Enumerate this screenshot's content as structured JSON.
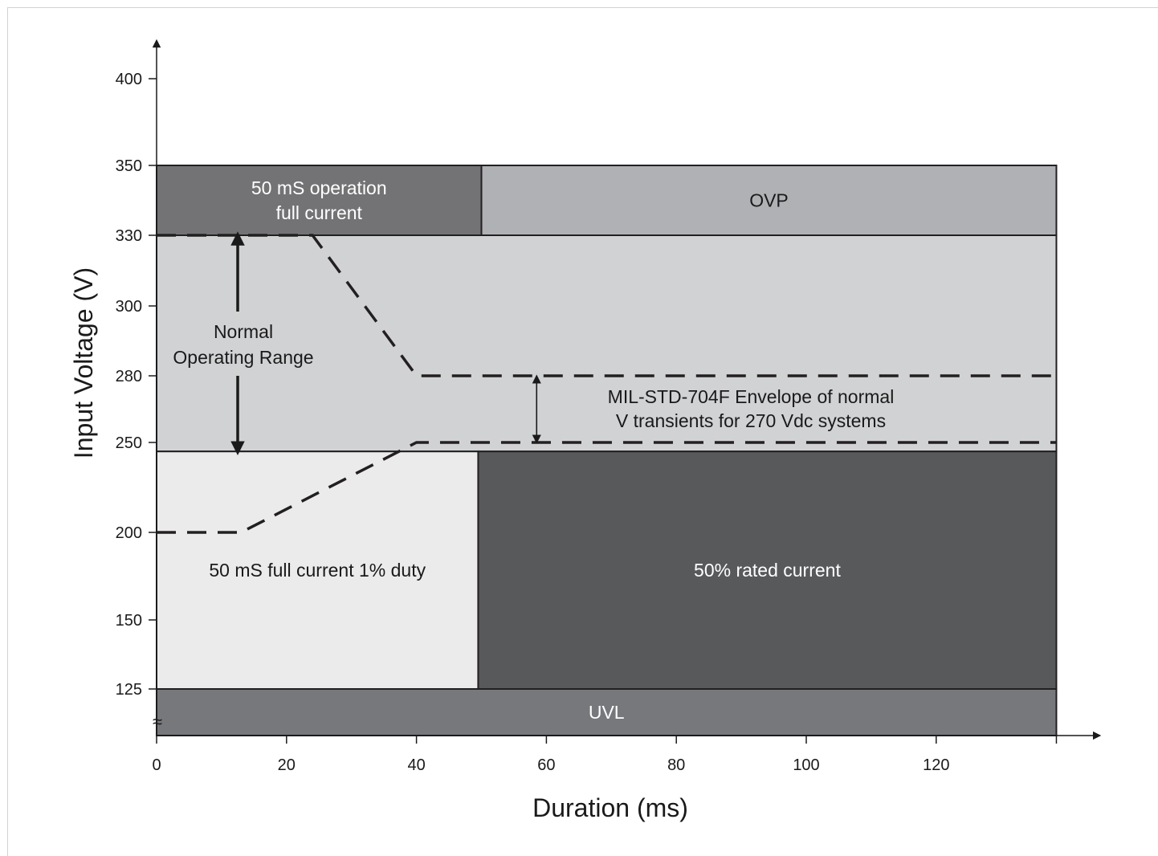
{
  "chart_data": {
    "type": "area",
    "xlabel": "Duration (ms)",
    "ylabel": "Input Voltage (V)",
    "xlim": [
      0,
      138.5
    ],
    "ylim_display": [
      125,
      400
    ],
    "x_ticks": [
      0,
      20,
      40,
      60,
      80,
      100,
      120
    ],
    "y_ticks": [
      400,
      350,
      330,
      300,
      280,
      250,
      200,
      150,
      125
    ],
    "axis_break_symbol": "≈",
    "regions": [
      {
        "name": "full-current-50ms-region",
        "label_lines": [
          "50 mS operation",
          "full current"
        ],
        "x": [
          0,
          50
        ],
        "y": [
          330,
          350
        ],
        "color": "#737375",
        "text_color": "#ffffff"
      },
      {
        "name": "ovp-region",
        "label_lines": [
          "OVP"
        ],
        "x": [
          50,
          138.5
        ],
        "y": [
          330,
          350
        ],
        "color": "#b0b1b4",
        "text_color": "#1a1a1a"
      },
      {
        "name": "normal-operating-region",
        "label_lines": [],
        "x": [
          0,
          138.5
        ],
        "y": [
          245,
          330
        ],
        "color": "#d1d2d4",
        "text_color": "#1a1a1a"
      },
      {
        "name": "low-duty-region",
        "label_lines": [
          "50 mS full current 1% duty"
        ],
        "x": [
          0,
          49.5
        ],
        "y": [
          125,
          245
        ],
        "color": "#ebebec",
        "text_color": "#1a1a1a"
      },
      {
        "name": "half-current-region",
        "label_lines": [
          "50% rated current"
        ],
        "x": [
          49.5,
          138.5
        ],
        "y": [
          125,
          245
        ],
        "color": "#58595b",
        "text_color": "#ffffff"
      },
      {
        "name": "uvl-region",
        "label_lines": [
          "UVL"
        ],
        "x": [
          0,
          138.5
        ],
        "y": [
          107.5,
          125
        ],
        "color": "#77787b",
        "text_color": "#ffffff"
      }
    ],
    "series": [
      {
        "name": "upper-envelope",
        "x": [
          0,
          24,
          40,
          138.5
        ],
        "y": [
          330,
          330,
          280,
          280
        ]
      },
      {
        "name": "lower-envelope",
        "x": [
          0,
          13,
          40,
          138.5
        ],
        "y": [
          200,
          200,
          250,
          250
        ]
      }
    ],
    "annotations": {
      "normal_range": {
        "lines": [
          "Normal",
          "Operating Range"
        ],
        "y_from": 330,
        "y_to": 245
      },
      "envelope": {
        "lines": [
          "MIL-STD-704F Envelope of normal",
          "V transients for 270 Vdc systems"
        ],
        "y_from": 280,
        "y_to": 250,
        "x": 58.5
      }
    }
  }
}
